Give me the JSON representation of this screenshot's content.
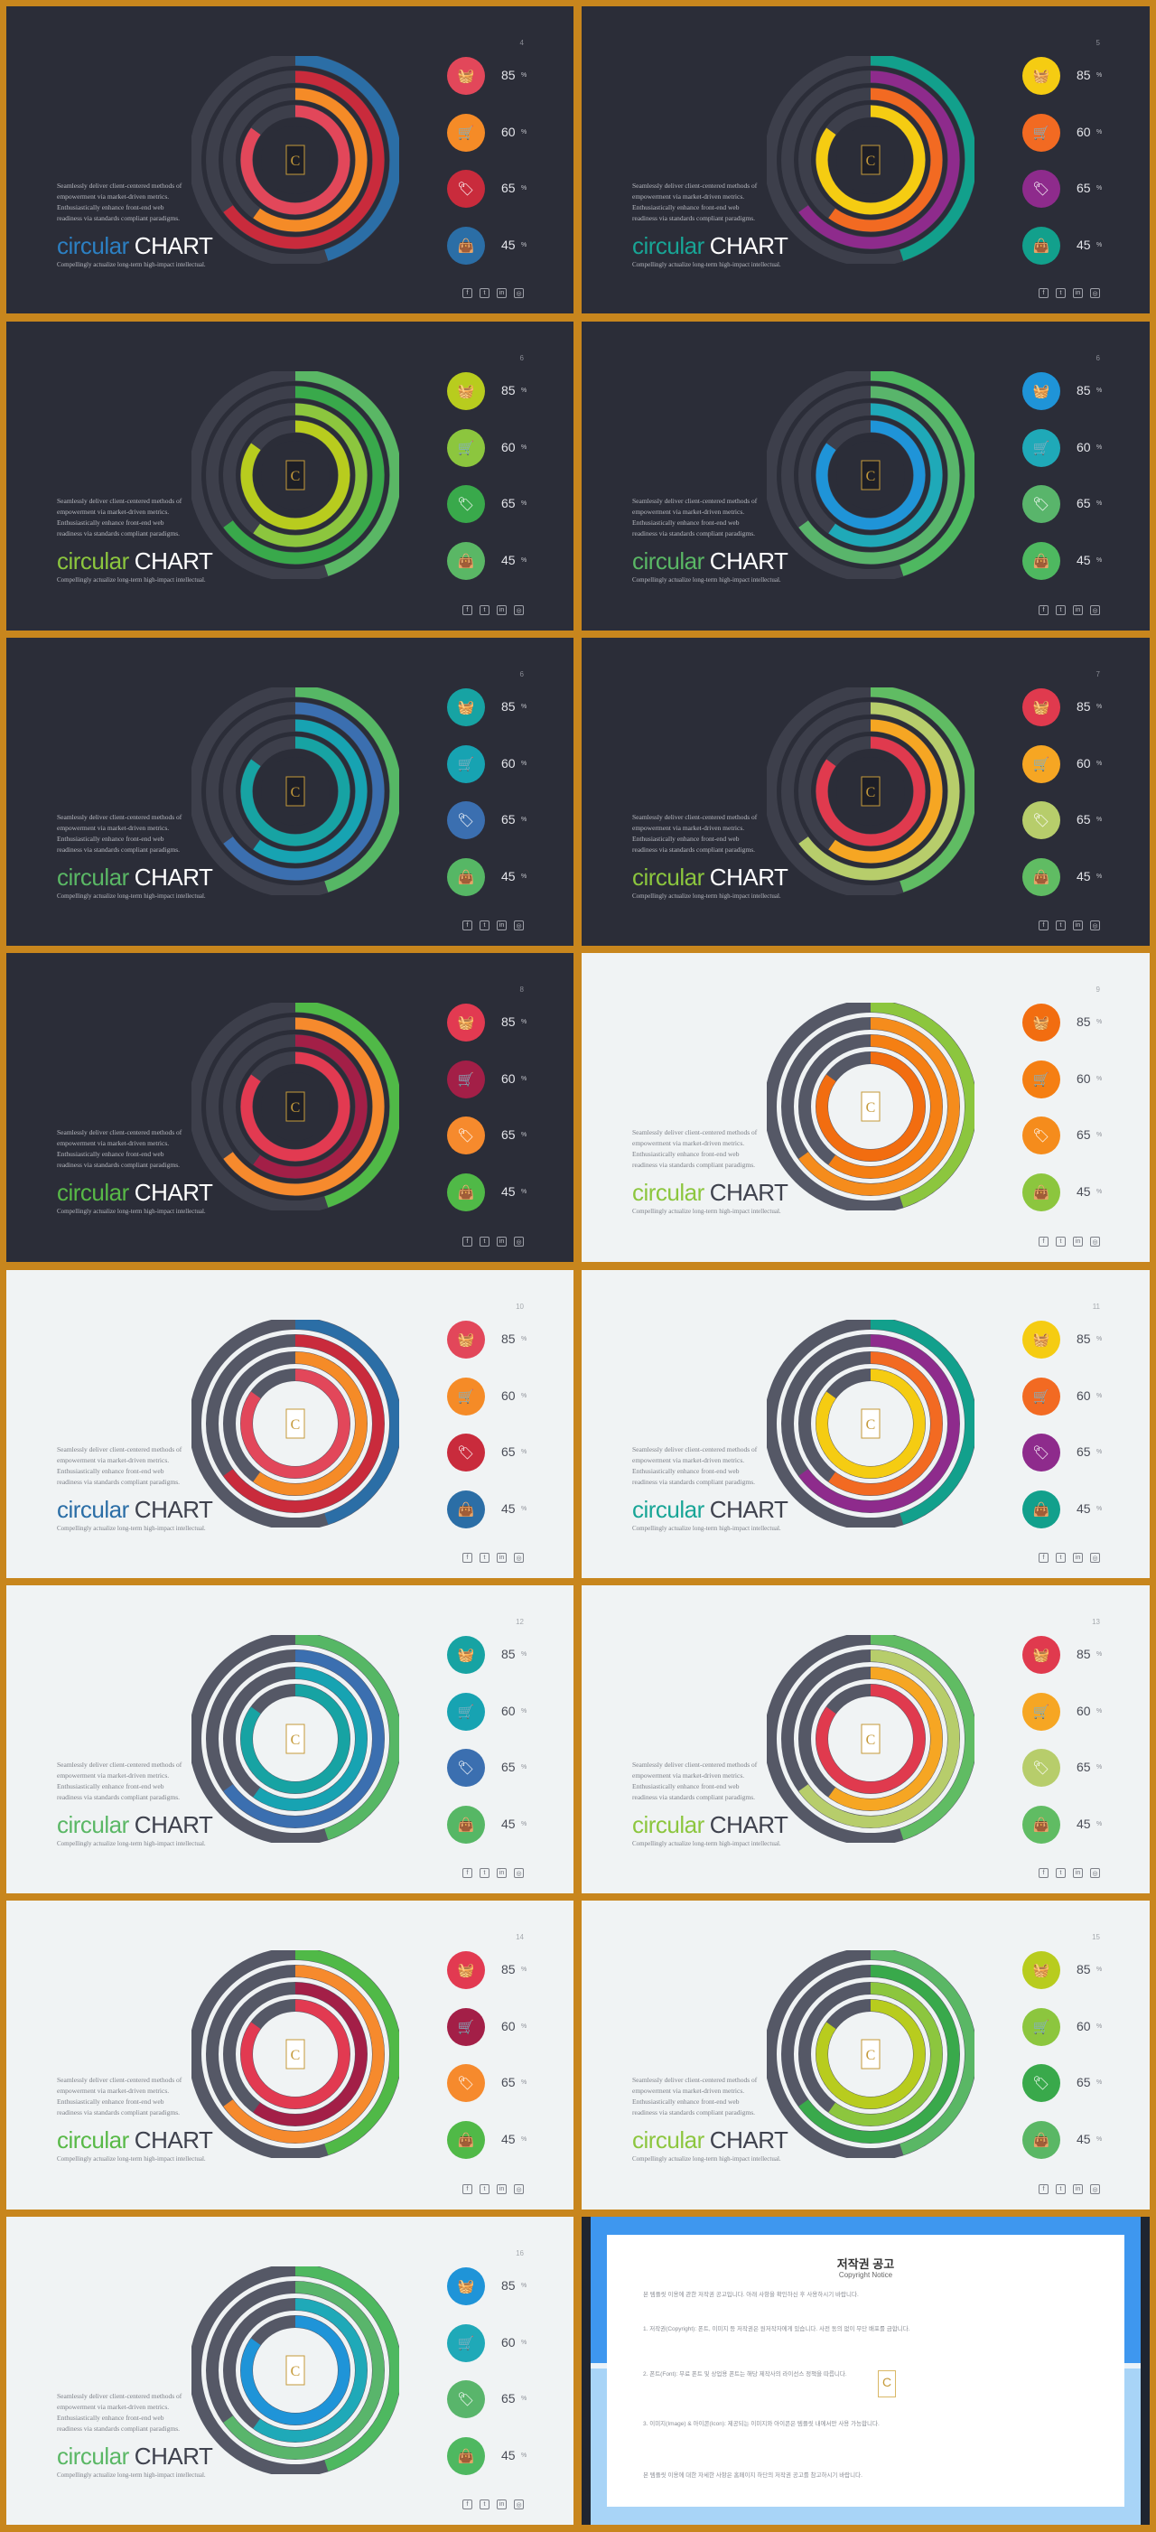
{
  "common": {
    "desc_lines": [
      "Seamlessly deliver client-centered methods of",
      "empowerment via market-driven metrics.",
      "Enthusiastically enhance front-end web",
      "readiness via standards compliant paradigms."
    ],
    "title_word1": "circular",
    "title_word2": "CHART",
    "subtitle": "Compellingly actualize long-term high-impact intellectual.",
    "percent_sign": "%",
    "values": [
      "85",
      "60",
      "65",
      "45"
    ],
    "fractions": [
      0.85,
      0.6,
      0.65,
      0.45
    ],
    "icon_names": [
      "basket-icon",
      "cart-icon",
      "tag-icon",
      "bag-icon"
    ],
    "icon_glyphs": [
      "🧺",
      "🛒",
      "🏷",
      "👜"
    ],
    "logo_letter": "C",
    "social_icons": [
      {
        "name": "facebook-icon",
        "glyph": "f"
      },
      {
        "name": "twitter-icon",
        "glyph": "t"
      },
      {
        "name": "linkedin-icon",
        "glyph": "in"
      },
      {
        "name": "instagram-icon",
        "glyph": "◎"
      }
    ]
  },
  "slides": [
    {
      "page": "4",
      "theme": "dark",
      "title_color": "#2c80c3",
      "colors": [
        "#e2475a",
        "#f58b27",
        "#c92b3c",
        "#2b6ea6"
      ]
    },
    {
      "page": "5",
      "theme": "dark",
      "title_color": "#18a596",
      "colors": [
        "#f5cc12",
        "#f26a22",
        "#8e2b8c",
        "#12a08c"
      ]
    },
    {
      "page": "6",
      "theme": "dark",
      "title_color": "#8cc63e",
      "colors": [
        "#b8cc1e",
        "#8cc63e",
        "#39a94b",
        "#5ab765"
      ]
    },
    {
      "page": "6",
      "theme": "dark",
      "title_color": "#5ab765",
      "colors": [
        "#1f94d8",
        "#1fa9b8",
        "#59b56b",
        "#4eb860"
      ]
    },
    {
      "page": "6",
      "theme": "dark",
      "title_color": "#5ab765",
      "colors": [
        "#17a3a3",
        "#17a3b2",
        "#3b6fb0",
        "#56b765"
      ]
    },
    {
      "page": "7",
      "theme": "dark",
      "title_color": "#8cc63e",
      "colors": [
        "#e03a4e",
        "#f6a623",
        "#b7cd6b",
        "#60bc63"
      ]
    },
    {
      "page": "8",
      "theme": "dark",
      "title_color": "#58b947",
      "colors": [
        "#e23a51",
        "#a31f47",
        "#f68a2d",
        "#50b947"
      ]
    },
    {
      "page": "9",
      "theme": "light",
      "title_color": "#8cc63e",
      "colors": [
        "#f26d10",
        "#f57f13",
        "#f58c1c",
        "#8cc63e"
      ]
    },
    {
      "page": "10",
      "theme": "light",
      "title_color": "#2b6ea6",
      "colors": [
        "#e2475a",
        "#f58b27",
        "#c92b3c",
        "#2b6ea6"
      ]
    },
    {
      "page": "11",
      "theme": "light",
      "title_color": "#18a596",
      "colors": [
        "#f5cc12",
        "#f26a22",
        "#8e2b8c",
        "#12a08c"
      ]
    },
    {
      "page": "12",
      "theme": "light",
      "title_color": "#5ab765",
      "colors": [
        "#17a3a3",
        "#17a3b2",
        "#3b6fb0",
        "#56b765"
      ]
    },
    {
      "page": "13",
      "theme": "light",
      "title_color": "#8cc63e",
      "colors": [
        "#e03a4e",
        "#f6a623",
        "#b7cd6b",
        "#60bc63"
      ]
    },
    {
      "page": "14",
      "theme": "light",
      "title_color": "#58b947",
      "colors": [
        "#e23a51",
        "#a31f47",
        "#f68a2d",
        "#50b947"
      ]
    },
    {
      "page": "15",
      "theme": "light",
      "title_color": "#8cc63e",
      "colors": [
        "#b8cc1e",
        "#8cc63e",
        "#39a94b",
        "#5ab765"
      ]
    },
    {
      "page": "16",
      "theme": "light",
      "title_color": "#5ab765",
      "colors": [
        "#1f94d8",
        "#1fa9b8",
        "#59b56b",
        "#4eb860"
      ]
    }
  ],
  "copyright": {
    "title": "저작권 공고",
    "subtitle": "Copyright Notice",
    "paragraphs": [
      "본 템플릿 이용에 관한 저작권 공고입니다. 아래 사항을 확인하신 후 사용하시기 바랍니다.",
      "1. 저작권(Copyright): 폰트, 이미지 등 저작권은 원저작자에게 있습니다. 사전 동의 없이 무단 배포를 금합니다.",
      "2. 폰트(Font): 무료 폰트 및 상업용 폰트는 해당 제작사의 라이선스 정책을 따릅니다.",
      "3. 이미지(Image) & 아이콘(Icon): 제공되는 이미지와 아이콘은 템플릿 내에서만 사용 가능합니다.",
      "본 템플릿 이용에 대한 자세한 사항은 홈페이지 하단의 저작권 공고를 참고하시기 바랍니다."
    ],
    "logo_letter": "C"
  }
}
